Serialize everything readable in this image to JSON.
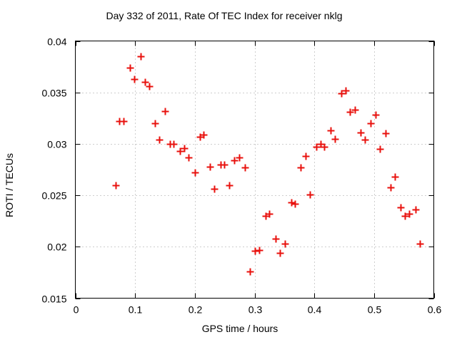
{
  "chart_data": {
    "type": "scatter",
    "title": "Day 332 of 2011, Rate Of TEC Index for receiver nklg",
    "xlabel": "GPS time / hours",
    "ylabel": "ROTI / TECUs",
    "xlim": [
      0,
      0.6
    ],
    "ylim": [
      0.015,
      0.04
    ],
    "xticks": {
      "values": [
        0,
        0.1,
        0.2,
        0.3,
        0.4,
        0.5,
        0.6
      ],
      "labels": [
        "0",
        "0.1",
        "0.2",
        "0.3",
        "0.4",
        "0.5",
        "0.6"
      ]
    },
    "yticks": {
      "values": [
        0.015,
        0.02,
        0.025,
        0.03,
        0.035,
        0.04
      ],
      "labels": [
        "0.015",
        "0.02",
        "0.025",
        "0.03",
        "0.035",
        "0.04"
      ]
    },
    "grid": true,
    "legend_position": "none",
    "marker": "plus",
    "points": [
      [
        0.067,
        0.026
      ],
      [
        0.074,
        0.0322
      ],
      [
        0.081,
        0.0322
      ],
      [
        0.091,
        0.0374
      ],
      [
        0.099,
        0.0363
      ],
      [
        0.109,
        0.0385
      ],
      [
        0.117,
        0.036
      ],
      [
        0.124,
        0.0356
      ],
      [
        0.133,
        0.032
      ],
      [
        0.141,
        0.0304
      ],
      [
        0.15,
        0.0332
      ],
      [
        0.158,
        0.03
      ],
      [
        0.164,
        0.03
      ],
      [
        0.175,
        0.0293
      ],
      [
        0.182,
        0.0296
      ],
      [
        0.19,
        0.0287
      ],
      [
        0.2,
        0.0272
      ],
      [
        0.208,
        0.0307
      ],
      [
        0.215,
        0.0309
      ],
      [
        0.225,
        0.0278
      ],
      [
        0.233,
        0.0256
      ],
      [
        0.243,
        0.028
      ],
      [
        0.249,
        0.028
      ],
      [
        0.258,
        0.026
      ],
      [
        0.266,
        0.0284
      ],
      [
        0.274,
        0.0287
      ],
      [
        0.284,
        0.0277
      ],
      [
        0.292,
        0.0176
      ],
      [
        0.3,
        0.0196
      ],
      [
        0.308,
        0.0197
      ],
      [
        0.318,
        0.023
      ],
      [
        0.325,
        0.0232
      ],
      [
        0.335,
        0.0208
      ],
      [
        0.343,
        0.0194
      ],
      [
        0.351,
        0.0203
      ],
      [
        0.361,
        0.0243
      ],
      [
        0.368,
        0.0242
      ],
      [
        0.377,
        0.0277
      ],
      [
        0.385,
        0.0288
      ],
      [
        0.393,
        0.0251
      ],
      [
        0.403,
        0.0297
      ],
      [
        0.41,
        0.03
      ],
      [
        0.417,
        0.0297
      ],
      [
        0.427,
        0.0313
      ],
      [
        0.435,
        0.0305
      ],
      [
        0.445,
        0.0349
      ],
      [
        0.452,
        0.0352
      ],
      [
        0.46,
        0.0331
      ],
      [
        0.468,
        0.0333
      ],
      [
        0.477,
        0.0311
      ],
      [
        0.485,
        0.0304
      ],
      [
        0.494,
        0.032
      ],
      [
        0.502,
        0.0328
      ],
      [
        0.51,
        0.0295
      ],
      [
        0.519,
        0.031
      ],
      [
        0.528,
        0.0258
      ],
      [
        0.535,
        0.0268
      ],
      [
        0.545,
        0.0238
      ],
      [
        0.552,
        0.023
      ],
      [
        0.559,
        0.0232
      ],
      [
        0.57,
        0.0236
      ],
      [
        0.577,
        0.0203
      ]
    ]
  },
  "colors": {
    "marker": "#e8110d",
    "grid": "#9e9e9e",
    "axis": "#000000",
    "background": "#ffffff"
  }
}
